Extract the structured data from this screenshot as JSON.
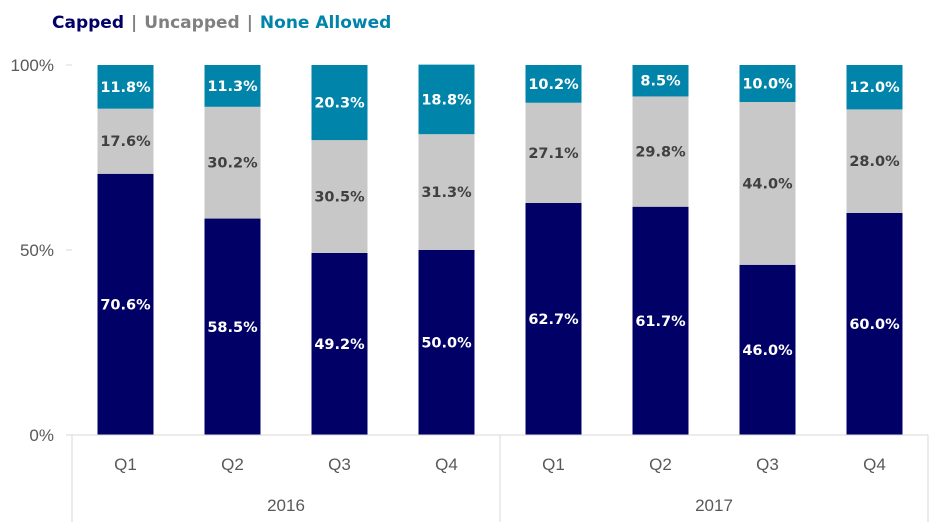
{
  "legend": {
    "items": [
      {
        "label": "Capped",
        "color": "#000066"
      },
      {
        "label": "Uncapped",
        "color": "#808080"
      },
      {
        "label": "None Allowed",
        "color": "#0084AA"
      }
    ],
    "separator": "|"
  },
  "chart_data": {
    "type": "bar",
    "stacked": true,
    "groups": [
      {
        "label": "2016",
        "categories": [
          "Q1",
          "Q2",
          "Q3",
          "Q4"
        ]
      },
      {
        "label": "2017",
        "categories": [
          "Q1",
          "Q2",
          "Q3",
          "Q4"
        ]
      }
    ],
    "series": [
      {
        "name": "Capped",
        "color": "#000066",
        "label_color": "#ffffff",
        "values": [
          70.6,
          58.5,
          49.2,
          50.0,
          62.7,
          61.7,
          46.0,
          60.0
        ],
        "labels": [
          "70.6%",
          "58.5%",
          "49.2%",
          "50.0%",
          "62.7%",
          "61.7%",
          "46.0%",
          "60.0%"
        ]
      },
      {
        "name": "Uncapped",
        "color": "#C8C8C8",
        "label_color": "#404040",
        "values": [
          17.6,
          30.2,
          30.5,
          31.3,
          27.1,
          29.8,
          44.0,
          28.0
        ],
        "labels": [
          "17.6%",
          "30.2%",
          "30.5%",
          "31.3%",
          "27.1%",
          "29.8%",
          "44.0%",
          "28.0%"
        ]
      },
      {
        "name": "None Allowed",
        "color": "#0084AA",
        "label_color": "#ffffff",
        "values": [
          11.8,
          11.3,
          20.3,
          18.8,
          10.2,
          8.5,
          10.0,
          12.0
        ],
        "labels": [
          "11.8%",
          "11.3%",
          "20.3%",
          "18.8%",
          "10.2%",
          "8.5%",
          "10.0%",
          "12.0%"
        ]
      }
    ],
    "y_ticks": [
      {
        "value": 0,
        "label": "0%"
      },
      {
        "value": 50,
        "label": "50%"
      },
      {
        "value": 100,
        "label": "100%"
      }
    ],
    "ylim": [
      0,
      100
    ],
    "grid": false
  }
}
